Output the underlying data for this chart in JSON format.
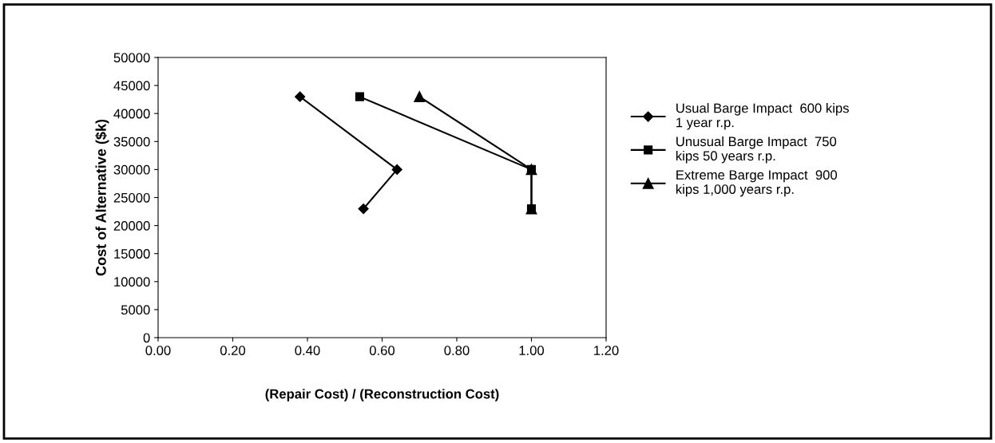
{
  "chart_data": {
    "type": "line",
    "xlabel": "(Repair Cost) / (Reconstruction Cost)",
    "ylabel": "Cost of Alternative ($k)",
    "xlim": [
      0,
      1.2
    ],
    "xticks": [
      {
        "value": 0,
        "label": "0.00"
      },
      {
        "value": 0.2,
        "label": "0.20"
      },
      {
        "value": 0.4,
        "label": "0.40"
      },
      {
        "value": 0.6,
        "label": "0.60"
      },
      {
        "value": 0.8,
        "label": "0.80"
      },
      {
        "value": 1.0,
        "label": "1.00"
      },
      {
        "value": 1.2,
        "label": "1.20"
      }
    ],
    "ylim": [
      0,
      50000
    ],
    "yticks": [
      0,
      5000,
      10000,
      15000,
      20000,
      25000,
      30000,
      35000,
      40000,
      45000,
      50000
    ],
    "grid": false,
    "legend": "right",
    "line_style": "solid",
    "series": [
      {
        "name": "Usual Barge Impact  600 kips 1 year r.p.",
        "color": "#000000",
        "marker": "diamond",
        "x": [
          0.38,
          0.64,
          0.55
        ],
        "values": [
          43000,
          30000,
          23000
        ]
      },
      {
        "name": "Unusual Barge Impact  750 kips 50 years r.p.",
        "color": "#000000",
        "marker": "square",
        "x": [
          0.54,
          1.0,
          1.0
        ],
        "values": [
          43000,
          30000,
          23000
        ]
      },
      {
        "name": "Extreme Barge Impact  900 kips 1,000 years r.p.",
        "color": "#000000",
        "marker": "triangle",
        "x": [
          0.7,
          1.0,
          1.0
        ],
        "values": [
          43000,
          30000,
          23000
        ]
      }
    ]
  }
}
